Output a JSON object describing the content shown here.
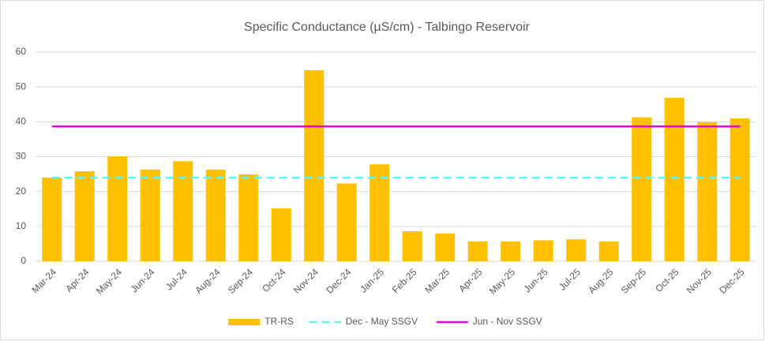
{
  "chart_data": {
    "type": "bar",
    "title": "Specific Conductance (µS/cm) - Talbingo Reservoir",
    "categories": [
      "Mar-24",
      "Apr-24",
      "May-24",
      "Jun-24",
      "Jul-24",
      "Aug-24",
      "Sep-24",
      "Oct-24",
      "Nov-24",
      "Dec-24",
      "Jan-25",
      "Feb-25",
      "Mar-25",
      "Apr-25",
      "May-25",
      "Jun-25",
      "Jul-25",
      "Aug-25",
      "Sep-25",
      "Oct-25",
      "Nov-25",
      "Dec-25"
    ],
    "series": [
      {
        "name": "TR-RS",
        "type": "bar",
        "color": "#ffc000",
        "values": [
          24,
          25.8,
          30.1,
          26.3,
          28.7,
          26.3,
          24.9,
          15.2,
          54.8,
          22.3,
          27.8,
          8.6,
          8.0,
          5.7,
          5.7,
          6.0,
          6.3,
          5.7,
          41.3,
          46.9,
          39.9,
          41.0
        ]
      },
      {
        "name": "Dec - May SSGV",
        "type": "line",
        "dashed": true,
        "color": "#66f2f2",
        "values": [
          24,
          24,
          24,
          24,
          24,
          24,
          24,
          24,
          24,
          24,
          24,
          24,
          24,
          24,
          24,
          24,
          24,
          24,
          24,
          24,
          24,
          24
        ]
      },
      {
        "name": "Jun - Nov SSGV",
        "type": "line",
        "dashed": false,
        "color": "#e600e6",
        "values": [
          38.7,
          38.7,
          38.7,
          38.7,
          38.7,
          38.7,
          38.7,
          38.7,
          38.7,
          38.7,
          38.7,
          38.7,
          38.7,
          38.7,
          38.7,
          38.7,
          38.7,
          38.7,
          38.7,
          38.7,
          38.7,
          38.7
        ]
      }
    ],
    "ylim": [
      0,
      60
    ],
    "yticks": [
      0,
      10,
      20,
      30,
      40,
      50,
      60
    ],
    "grid": true,
    "legend": "bottom"
  }
}
